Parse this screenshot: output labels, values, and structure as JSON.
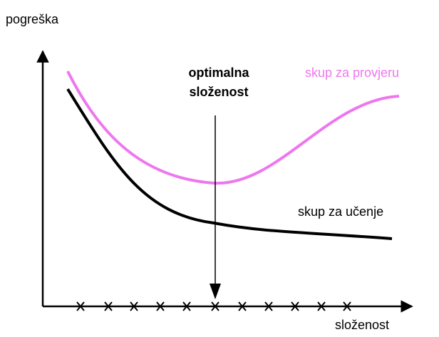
{
  "y_axis_label": "pogreška",
  "x_axis_label": "složenost",
  "optimum_label": [
    "optimalna",
    "složenost"
  ],
  "curves": {
    "validation": "skup za provjeru",
    "training": "skup za učenje"
  }
}
